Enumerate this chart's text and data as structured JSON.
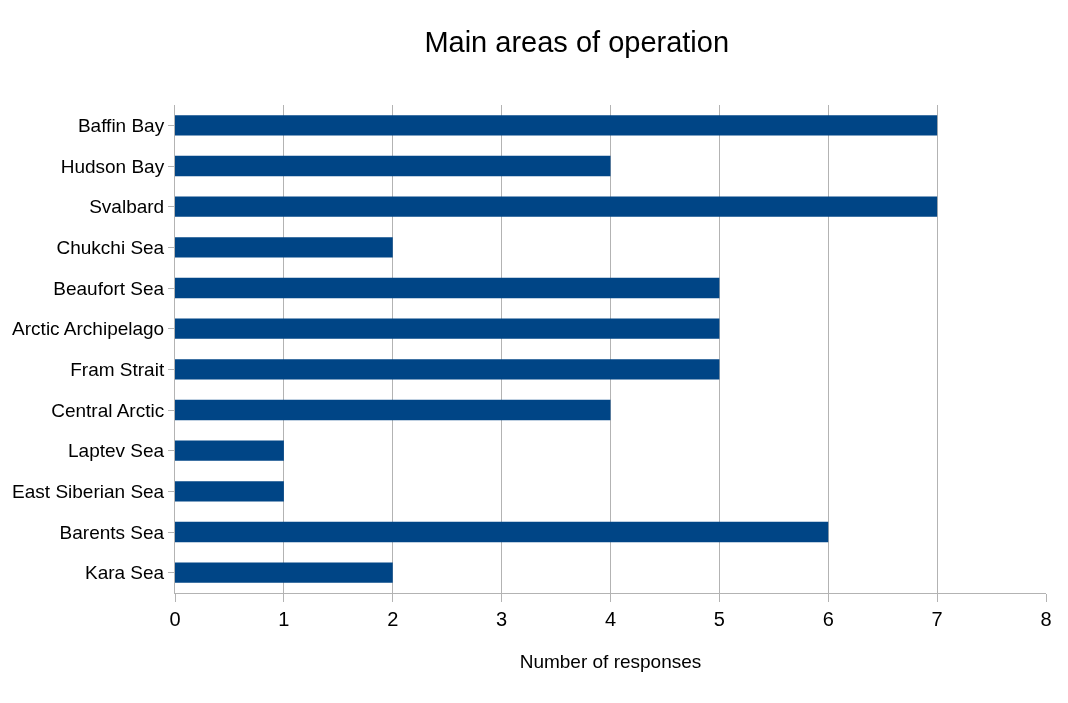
{
  "chart_data": {
    "type": "bar",
    "orientation": "horizontal",
    "title": "Main areas of operation",
    "xlabel": "Number of responses",
    "categories": [
      "Baffin Bay",
      "Hudson Bay",
      "Svalbard",
      "Chukchi Sea",
      "Beaufort Sea",
      "Arctic Archipelago",
      "Fram Strait",
      "Central Arctic",
      "Laptev Sea",
      "East Siberian Sea",
      "Barents Sea",
      "Kara Sea"
    ],
    "values": [
      7,
      4,
      7,
      2,
      5,
      5,
      5,
      4,
      1,
      1,
      6,
      2
    ],
    "color": "#004586",
    "xlim": [
      0,
      8
    ],
    "xticks": [
      0,
      1,
      2,
      3,
      4,
      5,
      6,
      7,
      8
    ],
    "grid": "x"
  }
}
